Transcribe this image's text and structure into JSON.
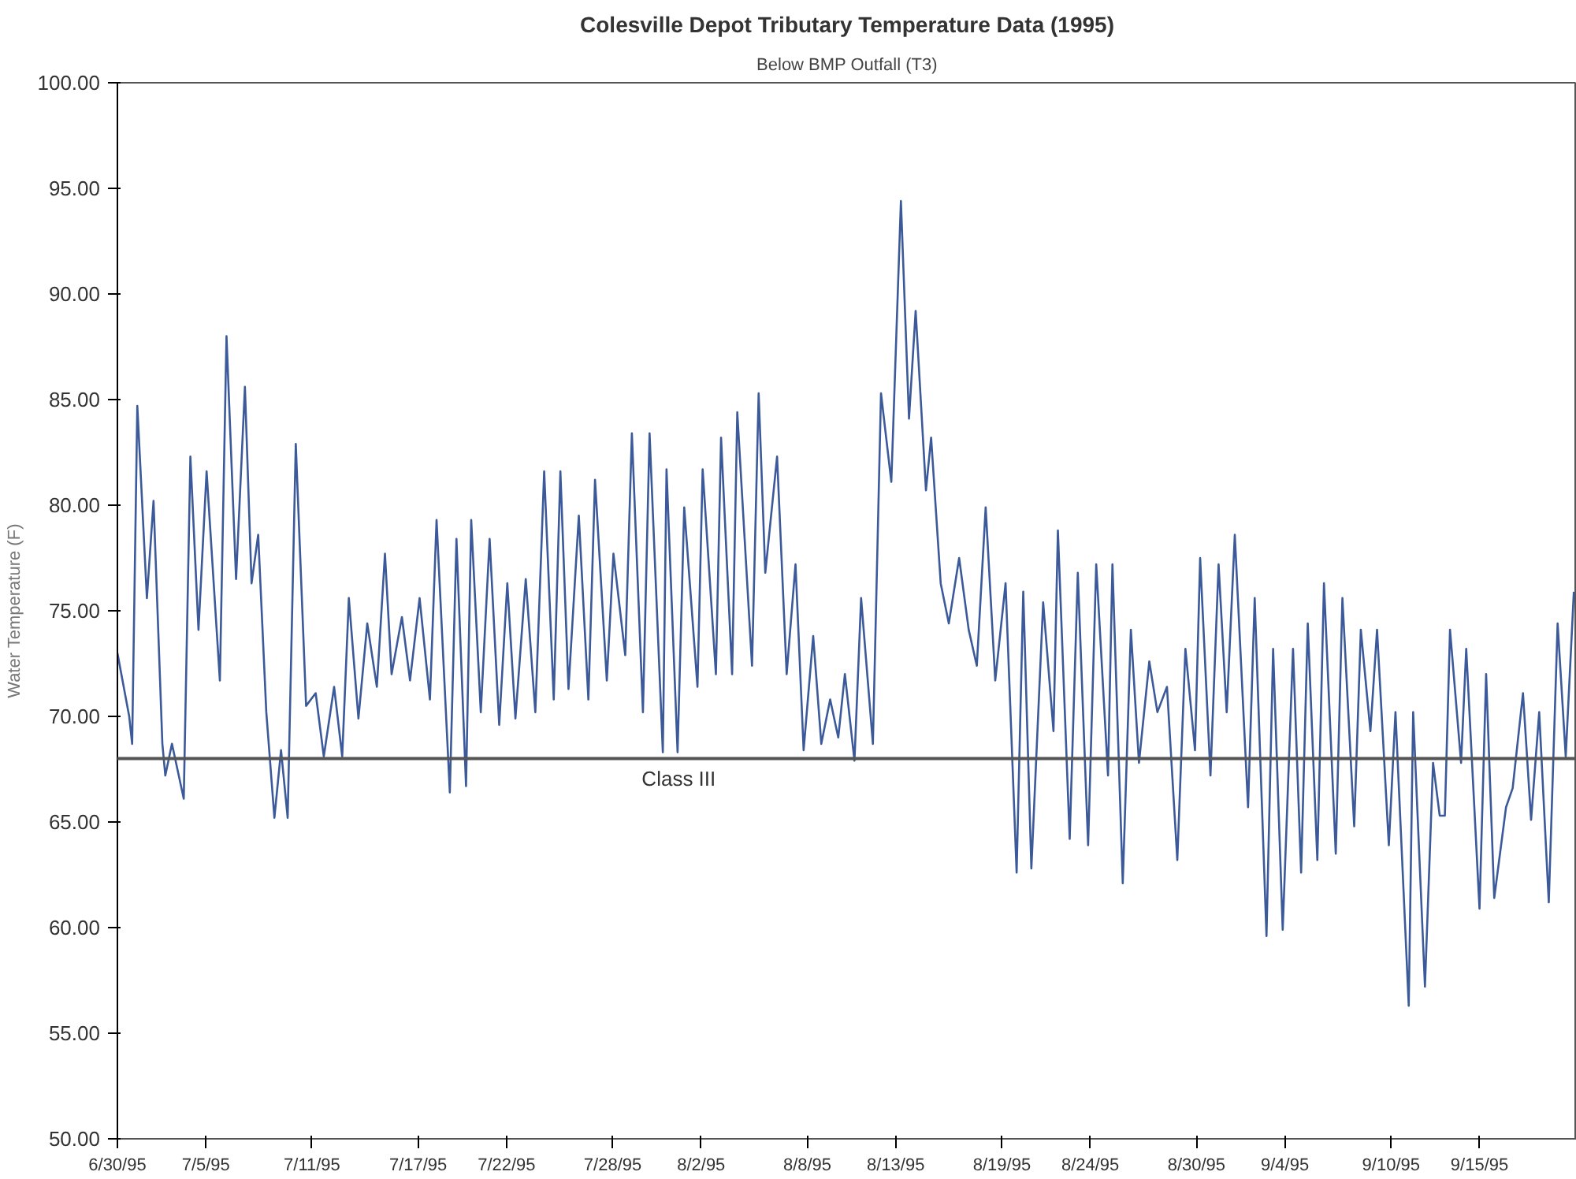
{
  "chart_data": {
    "type": "line",
    "title": "Colesville Depot Tributary Temperature Data (1995)",
    "subtitle": "Below BMP Outfall (T3)",
    "ylabel": "Water Temperature (F)",
    "x": [
      "1995-06-30T00:00",
      "1995-06-30T16:00",
      "1995-06-30T20:00",
      "1995-07-01T03:00",
      "1995-07-01T16:00",
      "1995-07-02T01:00",
      "1995-07-02T13:00",
      "1995-07-02T17:00",
      "1995-07-03T02:00",
      "1995-07-03T18:00",
      "1995-07-04T03:00",
      "1995-07-04T14:00",
      "1995-07-05T01:00",
      "1995-07-05T19:00",
      "1995-07-06T04:00",
      "1995-07-06T17:00",
      "1995-07-07T05:00",
      "1995-07-07T14:00",
      "1995-07-07T23:00",
      "1995-07-08T10:00",
      "1995-07-08T21:00",
      "1995-07-09T06:00",
      "1995-07-09T15:00",
      "1995-07-10T02:00",
      "1995-07-10T16:00",
      "1995-07-11T05:00",
      "1995-07-11T16:00",
      "1995-07-12T06:00",
      "1995-07-12T17:00",
      "1995-07-13T02:00",
      "1995-07-13T15:00",
      "1995-07-14T03:00",
      "1995-07-14T16:00",
      "1995-07-15T03:00",
      "1995-07-15T12:00",
      "1995-07-16T02:00",
      "1995-07-16T13:00",
      "1995-07-17T02:00",
      "1995-07-17T16:00",
      "1995-07-18T01:00",
      "1995-07-18T19:00",
      "1995-07-19T04:00",
      "1995-07-19T17:00",
      "1995-07-20T00:00",
      "1995-07-20T13:00",
      "1995-07-21T01:00",
      "1995-07-21T14:00",
      "1995-07-22T01:00",
      "1995-07-22T12:00",
      "1995-07-23T02:00",
      "1995-07-23T15:00",
      "1995-07-24T03:00",
      "1995-07-24T16:00",
      "1995-07-25T01:00",
      "1995-07-25T12:00",
      "1995-07-26T02:00",
      "1995-07-26T15:00",
      "1995-07-27T00:00",
      "1995-07-27T16:00",
      "1995-07-28T01:00",
      "1995-07-28T17:00",
      "1995-07-29T02:00",
      "1995-07-29T17:00",
      "1995-07-30T02:00",
      "1995-07-30T20:00",
      "1995-07-31T01:00",
      "1995-07-31T16:00",
      "1995-08-01T01:00",
      "1995-08-01T19:00",
      "1995-08-02T02:00",
      "1995-08-02T20:00",
      "1995-08-03T03:00",
      "1995-08-03T18:00",
      "1995-08-04T01:00",
      "1995-08-04T21:00",
      "1995-08-05T06:00",
      "1995-08-05T15:00",
      "1995-08-06T07:00",
      "1995-08-06T20:00",
      "1995-08-07T08:00",
      "1995-08-07T19:00",
      "1995-08-08T08:00",
      "1995-08-08T19:00",
      "1995-08-09T07:00",
      "1995-08-09T18:00",
      "1995-08-10T03:00",
      "1995-08-10T16:00",
      "1995-08-11T01:00",
      "1995-08-11T17:00",
      "1995-08-12T04:00",
      "1995-08-12T18:00",
      "1995-08-13T07:00",
      "1995-08-13T18:00",
      "1995-08-14T03:00",
      "1995-08-14T17:00",
      "1995-08-15T00:00",
      "1995-08-15T13:00",
      "1995-08-16T00:00",
      "1995-08-16T14:00",
      "1995-08-17T03:00",
      "1995-08-17T14:00",
      "1995-08-18T02:00",
      "1995-08-18T15:00",
      "1995-08-19T05:00",
      "1995-08-19T20:00",
      "1995-08-20T05:00",
      "1995-08-20T16:00",
      "1995-08-21T08:00",
      "1995-08-21T22:00",
      "1995-08-22T04:00",
      "1995-08-22T20:00",
      "1995-08-23T07:00",
      "1995-08-23T21:00",
      "1995-08-24T08:00",
      "1995-08-25T00:00",
      "1995-08-25T06:00",
      "1995-08-25T20:00",
      "1995-08-26T07:00",
      "1995-08-26T18:00",
      "1995-08-27T08:00",
      "1995-08-27T19:00",
      "1995-08-28T08:00",
      "1995-08-28T22:00",
      "1995-08-29T09:00",
      "1995-08-29T22:00",
      "1995-08-30T05:00",
      "1995-08-30T19:00",
      "1995-08-31T06:00",
      "1995-08-31T17:00",
      "1995-09-01T04:00",
      "1995-09-01T22:00",
      "1995-09-02T07:00",
      "1995-09-02T23:00",
      "1995-09-03T08:00",
      "1995-09-03T21:00",
      "1995-09-04T11:00",
      "1995-09-04T22:00",
      "1995-09-05T07:00",
      "1995-09-05T20:00",
      "1995-09-06T05:00",
      "1995-09-06T21:00",
      "1995-09-07T06:00",
      "1995-09-07T22:00",
      "1995-09-08T07:00",
      "1995-09-08T20:00",
      "1995-09-09T05:00",
      "1995-09-09T21:00",
      "1995-09-10T06:00",
      "1995-09-11T00:00",
      "1995-09-11T06:00",
      "1995-09-11T22:00",
      "1995-09-12T09:00",
      "1995-09-12T18:00",
      "1995-09-13T01:00",
      "1995-09-13T08:00",
      "1995-09-13T23:00",
      "1995-09-14T06:00",
      "1995-09-15T00:00",
      "1995-09-15T09:00",
      "1995-09-15T20:00",
      "1995-09-16T12:00",
      "1995-09-16T21:00",
      "1995-09-17T11:00",
      "1995-09-17T22:00",
      "1995-09-18T09:00",
      "1995-09-18T22:00",
      "1995-09-19T10:00",
      "1995-09-19T21:00",
      "1995-09-20T08:00"
    ],
    "series": [
      {
        "color": "#3c5a9a",
        "values": [
          73.0,
          70.0,
          68.7,
          84.7,
          75.6,
          80.2,
          68.7,
          67.2,
          68.7,
          66.1,
          82.3,
          74.1,
          81.6,
          71.7,
          88.0,
          76.5,
          85.6,
          76.3,
          78.6,
          70.2,
          65.2,
          68.4,
          65.2,
          82.9,
          70.5,
          71.1,
          68.1,
          71.4,
          68.1,
          75.6,
          69.9,
          74.4,
          71.4,
          77.7,
          72.0,
          74.7,
          71.7,
          75.6,
          70.8,
          79.3,
          66.4,
          78.4,
          66.7,
          79.3,
          70.2,
          78.4,
          69.6,
          76.3,
          69.9,
          76.5,
          70.2,
          81.6,
          70.8,
          81.6,
          71.3,
          79.5,
          70.8,
          81.2,
          71.7,
          77.7,
          72.9,
          83.4,
          70.2,
          83.4,
          68.3,
          81.7,
          68.3,
          79.9,
          71.4,
          81.7,
          72.0,
          83.2,
          72.0,
          84.4,
          72.4,
          85.3,
          76.8,
          82.3,
          72.0,
          77.2,
          68.4,
          73.8,
          68.7,
          70.8,
          69.0,
          72.0,
          67.9,
          75.6,
          68.7,
          85.3,
          81.1,
          94.4,
          84.1,
          89.2,
          80.7,
          83.2,
          76.3,
          74.4,
          77.5,
          74.1,
          72.4,
          79.9,
          71.7,
          76.3,
          62.6,
          75.9,
          62.8,
          75.4,
          69.3,
          78.8,
          64.2,
          76.8,
          63.9,
          77.2,
          67.2,
          77.2,
          62.1,
          74.1,
          67.8,
          72.6,
          70.2,
          71.4,
          63.2,
          73.2,
          68.4,
          77.5,
          67.2,
          77.2,
          70.2,
          78.6,
          65.7,
          75.6,
          59.6,
          73.2,
          59.9,
          73.2,
          62.6,
          74.4,
          63.2,
          76.3,
          63.5,
          75.6,
          64.8,
          74.1,
          69.3,
          74.1,
          63.9,
          70.2,
          56.3,
          70.2,
          57.2,
          67.8,
          65.3,
          65.3,
          74.1,
          67.8,
          73.2,
          60.9,
          72.0,
          61.4,
          65.7,
          66.6,
          71.1,
          65.1,
          70.2,
          61.2,
          74.4,
          68.1,
          75.9
        ]
      }
    ],
    "xlim": [
      "1995-06-30T00:00",
      "1995-09-20T12:00"
    ],
    "xticks": [
      {
        "value": "1995-06-30",
        "label": "6/30/95"
      },
      {
        "value": "1995-07-05",
        "label": "7/5/95"
      },
      {
        "value": "1995-07-11",
        "label": "7/11/95"
      },
      {
        "value": "1995-07-17",
        "label": "7/17/95"
      },
      {
        "value": "1995-07-22",
        "label": "7/22/95"
      },
      {
        "value": "1995-07-28",
        "label": "7/28/95"
      },
      {
        "value": "1995-08-02",
        "label": "8/2/95"
      },
      {
        "value": "1995-08-08",
        "label": "8/8/95"
      },
      {
        "value": "1995-08-13",
        "label": "8/13/95"
      },
      {
        "value": "1995-08-19",
        "label": "8/19/95"
      },
      {
        "value": "1995-08-24",
        "label": "8/24/95"
      },
      {
        "value": "1995-08-30",
        "label": "8/30/95"
      },
      {
        "value": "1995-09-04",
        "label": "9/4/95"
      },
      {
        "value": "1995-09-10",
        "label": "9/10/95"
      },
      {
        "value": "1995-09-15",
        "label": "9/15/95"
      }
    ],
    "ylim": [
      50,
      100
    ],
    "yticks": [
      {
        "value": 50,
        "label": "50.00"
      },
      {
        "value": 55,
        "label": "55.00"
      },
      {
        "value": 60,
        "label": "60.00"
      },
      {
        "value": 65,
        "label": "65.00"
      },
      {
        "value": 70,
        "label": "70.00"
      },
      {
        "value": 75,
        "label": "75.00"
      },
      {
        "value": 80,
        "label": "80.00"
      },
      {
        "value": 85,
        "label": "85.00"
      },
      {
        "value": 90,
        "label": "90.00"
      },
      {
        "value": 95,
        "label": "95.00"
      },
      {
        "value": 100,
        "label": "100.00"
      }
    ],
    "ref_lines": [
      {
        "axis": "y",
        "value": 68,
        "label": "Class III",
        "color": "#555555"
      }
    ],
    "grid": false,
    "marker": "none",
    "line_style": "solid"
  }
}
